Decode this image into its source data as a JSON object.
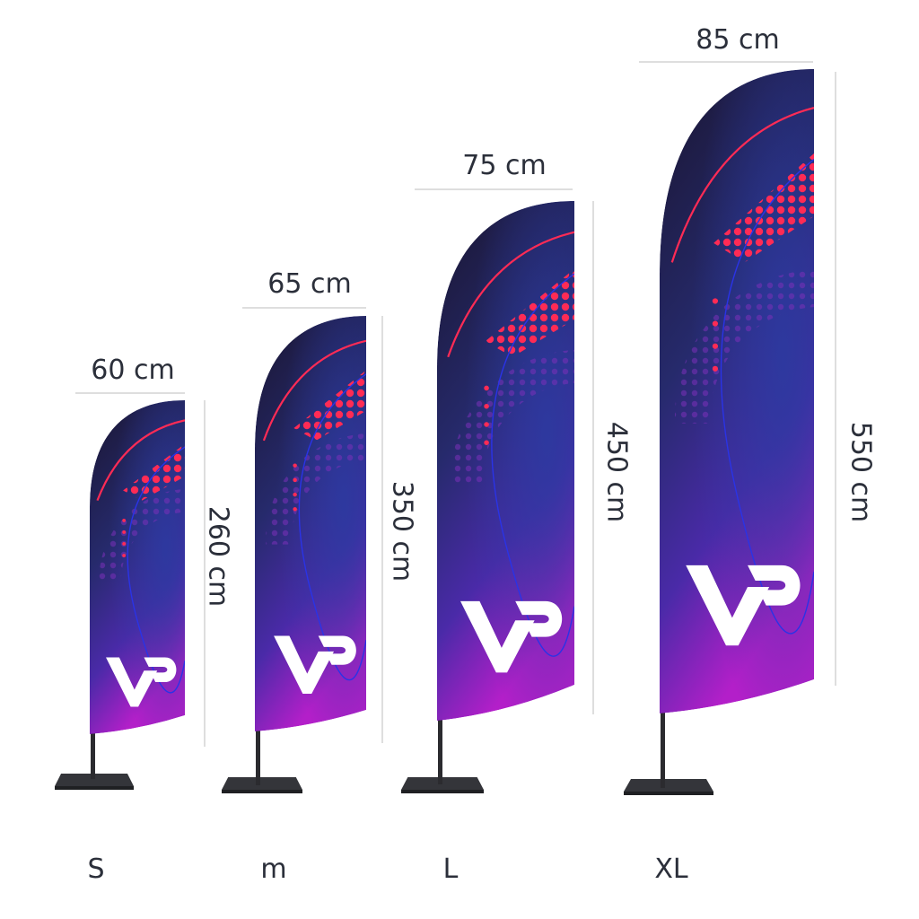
{
  "flags": [
    {
      "size": "S",
      "width": "60 cm",
      "height": "260 cm",
      "logo_text": "VP"
    },
    {
      "size": "m",
      "width": "65 cm",
      "height": "350 cm",
      "logo_text": "VP"
    },
    {
      "size": "L",
      "width": "75 cm",
      "height": "450 cm",
      "logo_text": "VP"
    },
    {
      "size": "XL",
      "width": "85 cm",
      "height": "550 cm",
      "logo_text": "VP"
    }
  ],
  "colors": {
    "flag_top": "#1a1530",
    "flag_mid": "#2a2a7a",
    "flag_bottom": "#b31fc9",
    "accent_red": "#ff2b55",
    "line_blue": "#2a33e6",
    "pole": "#2b2b2f",
    "base": "#2f3033",
    "text": "#2b2f3a",
    "dimension_line": "#c9c9c9"
  }
}
